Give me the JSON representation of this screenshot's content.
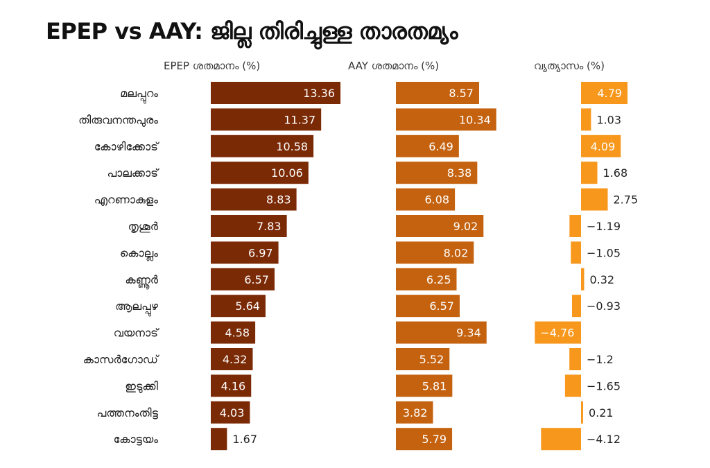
{
  "chart_data": {
    "type": "bar",
    "title": "EPEP vs AAY: ജില്ല തിരിച്ചുള്ള താരതമ്യം",
    "categories": [
      "മലപ്പുറം",
      "തിരുവനന്തപുരം",
      "കോഴിക്കോട്",
      "പാലക്കാട്",
      "എറണാകുളം",
      "തൃശൂർ",
      "കൊല്ലം",
      "കണ്ണൂർ",
      "ആലപ്പുഴ",
      "വയനാട്",
      "കാസർഗോഡ്",
      "ഇടുക്കി",
      "പത്തനംതിട്ട",
      "കോട്ടയം"
    ],
    "series": [
      {
        "name": "EPEP ശതമാനം (%)",
        "color": "#7b2a06",
        "values": [
          13.36,
          11.37,
          10.58,
          10.06,
          8.83,
          7.83,
          6.97,
          6.57,
          5.64,
          4.58,
          4.32,
          4.16,
          4.03,
          1.67
        ]
      },
      {
        "name": "AAY ശതമാനം (%)",
        "color": "#c4620f",
        "values": [
          8.57,
          10.34,
          6.49,
          8.38,
          6.08,
          9.02,
          8.02,
          6.25,
          6.57,
          9.34,
          5.52,
          5.81,
          3.82,
          5.79
        ]
      },
      {
        "name": "വ്യത്യാസം (%)",
        "color": "#f7971b",
        "values": [
          4.79,
          1.03,
          4.09,
          1.68,
          2.75,
          -1.19,
          -1.05,
          0.32,
          -0.93,
          -4.76,
          -1.2,
          -1.65,
          0.21,
          -4.12
        ]
      }
    ],
    "grid": false,
    "legend": "none"
  }
}
